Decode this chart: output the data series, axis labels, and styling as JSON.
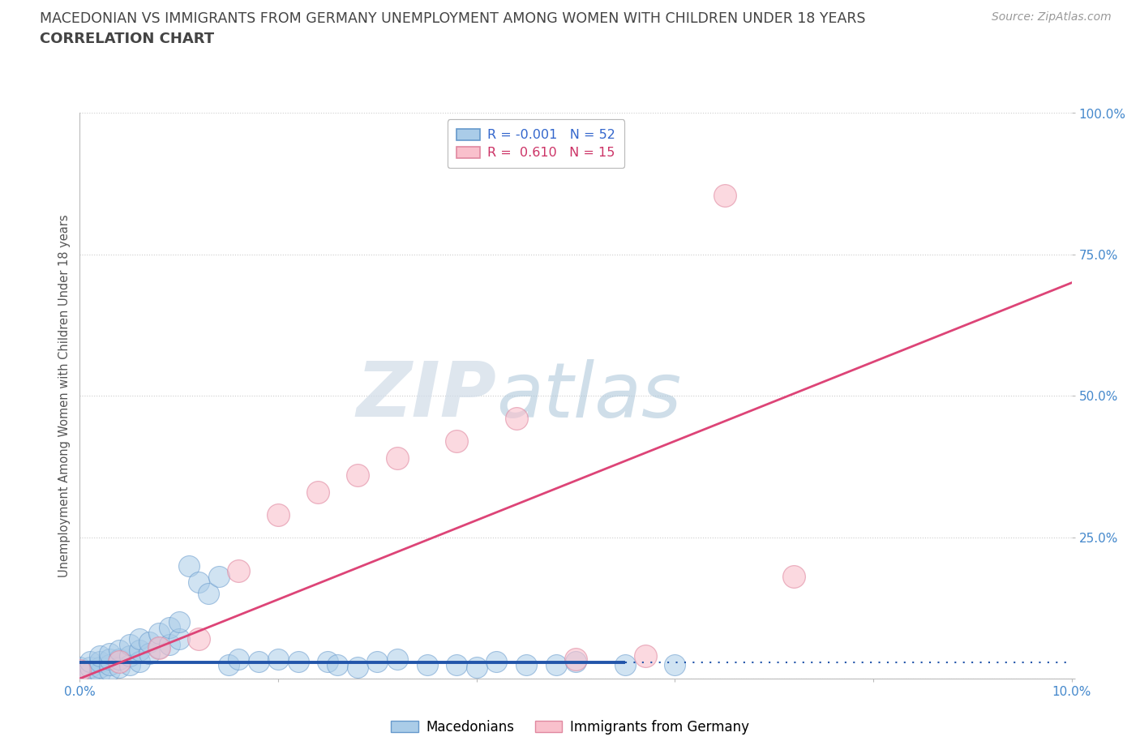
{
  "title_line1": "MACEDONIAN VS IMMIGRANTS FROM GERMANY UNEMPLOYMENT AMONG WOMEN WITH CHILDREN UNDER 18 YEARS",
  "title_line2": "CORRELATION CHART",
  "source_text": "Source: ZipAtlas.com",
  "ylabel": "Unemployment Among Women with Children Under 18 years",
  "xlim": [
    0,
    0.1
  ],
  "ylim": [
    0,
    1.0
  ],
  "xticks": [
    0.0,
    0.02,
    0.04,
    0.06,
    0.08,
    0.1
  ],
  "xticklabels": [
    "0.0%",
    "",
    "",
    "",
    "",
    "10.0%"
  ],
  "yticks": [
    0.0,
    0.25,
    0.5,
    0.75,
    1.0
  ],
  "yticklabels": [
    "",
    "25.0%",
    "50.0%",
    "75.0%",
    "100.0%"
  ],
  "macedonian_color": "#aacce8",
  "immigrant_color": "#f9c0cc",
  "macedonian_edge": "#6699cc",
  "immigrant_edge": "#e088a0",
  "trend_blue": "#2255aa",
  "trend_pink": "#dd4477",
  "legend_r_mac": "R = -0.001",
  "legend_n_mac": "N = 52",
  "legend_r_imm": "R =  0.610",
  "legend_n_imm": "N = 15",
  "watermark_zip": "ZIP",
  "watermark_atlas": "atlas",
  "background_color": "#ffffff",
  "grid_color": "#cccccc",
  "title_color": "#444444",
  "axis_label_color": "#555555",
  "tick_color": "#4488cc",
  "title_fontsize": 12.5,
  "ylabel_fontsize": 10.5,
  "tick_fontsize": 11,
  "legend_fontsize": 11.5,
  "source_fontsize": 10,
  "mac_x": [
    0.0,
    0.001,
    0.001,
    0.001,
    0.002,
    0.002,
    0.002,
    0.002,
    0.003,
    0.003,
    0.003,
    0.003,
    0.004,
    0.004,
    0.004,
    0.005,
    0.005,
    0.005,
    0.006,
    0.006,
    0.006,
    0.007,
    0.007,
    0.008,
    0.008,
    0.009,
    0.009,
    0.01,
    0.01,
    0.011,
    0.012,
    0.013,
    0.014,
    0.015,
    0.016,
    0.018,
    0.02,
    0.022,
    0.025,
    0.026,
    0.028,
    0.03,
    0.032,
    0.035,
    0.038,
    0.04,
    0.042,
    0.045,
    0.048,
    0.05,
    0.055,
    0.06
  ],
  "mac_y": [
    0.02,
    0.01,
    0.02,
    0.03,
    0.01,
    0.02,
    0.03,
    0.04,
    0.015,
    0.025,
    0.035,
    0.045,
    0.02,
    0.035,
    0.05,
    0.025,
    0.04,
    0.06,
    0.03,
    0.05,
    0.07,
    0.045,
    0.065,
    0.055,
    0.08,
    0.06,
    0.09,
    0.07,
    0.1,
    0.2,
    0.17,
    0.15,
    0.18,
    0.025,
    0.035,
    0.03,
    0.035,
    0.03,
    0.03,
    0.025,
    0.02,
    0.03,
    0.035,
    0.025,
    0.025,
    0.02,
    0.03,
    0.025,
    0.025,
    0.03,
    0.025,
    0.025
  ],
  "imm_x": [
    0.0,
    0.004,
    0.008,
    0.012,
    0.016,
    0.02,
    0.024,
    0.028,
    0.032,
    0.038,
    0.044,
    0.05,
    0.057,
    0.065,
    0.072
  ],
  "imm_y": [
    0.015,
    0.03,
    0.055,
    0.07,
    0.19,
    0.29,
    0.33,
    0.36,
    0.39,
    0.42,
    0.46,
    0.035,
    0.04,
    0.855,
    0.18
  ],
  "trend_mac_x0": 0.0,
  "trend_mac_x1": 0.055,
  "trend_mac_y0": 0.028,
  "trend_mac_y1": 0.028,
  "trend_mac_dash_x0": 0.055,
  "trend_mac_dash_x1": 0.1,
  "trend_mac_dash_y0": 0.028,
  "trend_mac_dash_y1": 0.028,
  "trend_imm_x0": 0.0,
  "trend_imm_x1": 0.1,
  "trend_imm_y0": 0.0,
  "trend_imm_y1": 0.7
}
